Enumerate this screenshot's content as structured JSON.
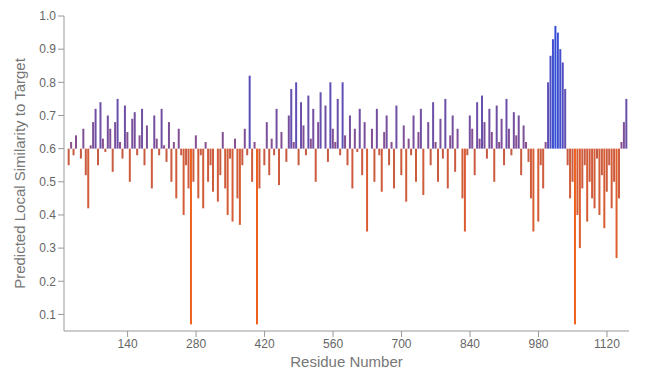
{
  "chart_data": {
    "type": "bar",
    "x_label": "Residue Number",
    "y_label": "Predicted Local Similarity to Target",
    "base": 0.6,
    "x": [
      20,
      25,
      30,
      35,
      40,
      45,
      50,
      55,
      60,
      65,
      70,
      75,
      80,
      85,
      90,
      95,
      100,
      105,
      110,
      115,
      120,
      125,
      130,
      135,
      140,
      145,
      150,
      155,
      160,
      165,
      170,
      175,
      180,
      185,
      190,
      195,
      200,
      205,
      210,
      215,
      220,
      225,
      230,
      235,
      240,
      245,
      250,
      255,
      260,
      265,
      270,
      275,
      280,
      285,
      290,
      295,
      300,
      305,
      310,
      315,
      320,
      325,
      330,
      335,
      340,
      345,
      350,
      355,
      360,
      365,
      370,
      375,
      380,
      385,
      390,
      395,
      400,
      405,
      410,
      415,
      420,
      425,
      430,
      435,
      440,
      445,
      450,
      455,
      460,
      465,
      470,
      475,
      480,
      485,
      490,
      495,
      500,
      505,
      510,
      515,
      520,
      525,
      530,
      535,
      540,
      545,
      550,
      555,
      560,
      565,
      570,
      575,
      580,
      585,
      590,
      595,
      600,
      605,
      610,
      615,
      620,
      625,
      630,
      635,
      640,
      645,
      650,
      655,
      660,
      665,
      670,
      675,
      680,
      685,
      690,
      695,
      700,
      705,
      710,
      715,
      720,
      725,
      730,
      735,
      740,
      745,
      750,
      755,
      760,
      765,
      770,
      775,
      780,
      785,
      790,
      795,
      800,
      805,
      810,
      815,
      820,
      825,
      830,
      835,
      840,
      845,
      850,
      855,
      860,
      865,
      870,
      875,
      880,
      885,
      890,
      895,
      900,
      905,
      910,
      915,
      920,
      925,
      930,
      935,
      940,
      945,
      950,
      955,
      960,
      965,
      970,
      975,
      980,
      985,
      990,
      995,
      1000,
      1005,
      1010,
      1015,
      1020,
      1025,
      1030,
      1035,
      1040,
      1045,
      1050,
      1055,
      1060,
      1065,
      1070,
      1075,
      1080,
      1085,
      1090,
      1095,
      1100,
      1105,
      1110,
      1115,
      1120,
      1125,
      1130,
      1135,
      1140,
      1145,
      1150,
      1155,
      1160
    ],
    "values": [
      0.55,
      0.62,
      0.58,
      0.64,
      0.6,
      0.57,
      0.66,
      0.52,
      0.42,
      0.61,
      0.68,
      0.72,
      0.55,
      0.74,
      0.63,
      0.59,
      0.7,
      0.66,
      0.53,
      0.68,
      0.75,
      0.62,
      0.57,
      0.73,
      0.65,
      0.5,
      0.69,
      0.71,
      0.58,
      0.64,
      0.72,
      0.55,
      0.67,
      0.6,
      0.48,
      0.7,
      0.63,
      0.58,
      0.72,
      0.61,
      0.56,
      0.68,
      0.5,
      0.62,
      0.45,
      0.66,
      0.58,
      0.4,
      0.55,
      0.48,
      0.07,
      0.5,
      0.64,
      0.45,
      0.58,
      0.42,
      0.62,
      0.5,
      0.55,
      0.47,
      0.6,
      0.44,
      0.52,
      0.65,
      0.48,
      0.4,
      0.57,
      0.38,
      0.63,
      0.45,
      0.37,
      0.55,
      0.66,
      0.58,
      0.82,
      0.5,
      0.62,
      0.07,
      0.48,
      0.6,
      0.55,
      0.68,
      0.52,
      0.63,
      0.58,
      0.72,
      0.49,
      0.65,
      0.6,
      0.56,
      0.7,
      0.78,
      0.62,
      0.8,
      0.55,
      0.74,
      0.67,
      0.58,
      0.76,
      0.63,
      0.72,
      0.5,
      0.68,
      0.77,
      0.6,
      0.73,
      0.56,
      0.8,
      0.66,
      0.62,
      0.75,
      0.58,
      0.8,
      0.64,
      0.55,
      0.7,
      0.48,
      0.66,
      0.59,
      0.72,
      0.52,
      0.68,
      0.35,
      0.6,
      0.66,
      0.5,
      0.72,
      0.58,
      0.47,
      0.65,
      0.7,
      0.55,
      0.62,
      0.48,
      0.73,
      0.6,
      0.52,
      0.67,
      0.44,
      0.63,
      0.58,
      0.7,
      0.5,
      0.65,
      0.72,
      0.46,
      0.6,
      0.68,
      0.55,
      0.74,
      0.62,
      0.5,
      0.69,
      0.57,
      0.75,
      0.48,
      0.64,
      0.7,
      0.53,
      0.66,
      0.6,
      0.45,
      0.35,
      0.58,
      0.7,
      0.66,
      0.52,
      0.74,
      0.63,
      0.76,
      0.68,
      0.57,
      0.72,
      0.65,
      0.5,
      0.73,
      0.62,
      0.69,
      0.55,
      0.75,
      0.66,
      0.58,
      0.71,
      0.64,
      0.7,
      0.52,
      0.67,
      0.62,
      0.56,
      0.45,
      0.35,
      0.6,
      0.38,
      0.55,
      0.48,
      0.62,
      0.8,
      0.88,
      0.93,
      0.97,
      0.95,
      0.9,
      0.86,
      0.78,
      0.55,
      0.45,
      0.5,
      0.07,
      0.4,
      0.3,
      0.48,
      0.55,
      0.38,
      0.5,
      0.45,
      0.42,
      0.57,
      0.4,
      0.52,
      0.36,
      0.47,
      0.55,
      0.42,
      0.5,
      0.27,
      0.45,
      0.62,
      0.68,
      0.75
    ],
    "xlim": [
      10,
      1165
    ],
    "ylim": [
      0.05,
      1.0
    ],
    "xticks": [
      140,
      280,
      420,
      560,
      700,
      840,
      980,
      1120
    ],
    "yticks": [
      0.1,
      0.2,
      0.3,
      0.4,
      0.5,
      0.6,
      0.7,
      0.8,
      0.9,
      {
        "value": 1,
        "label": "1.0"
      }
    ]
  }
}
